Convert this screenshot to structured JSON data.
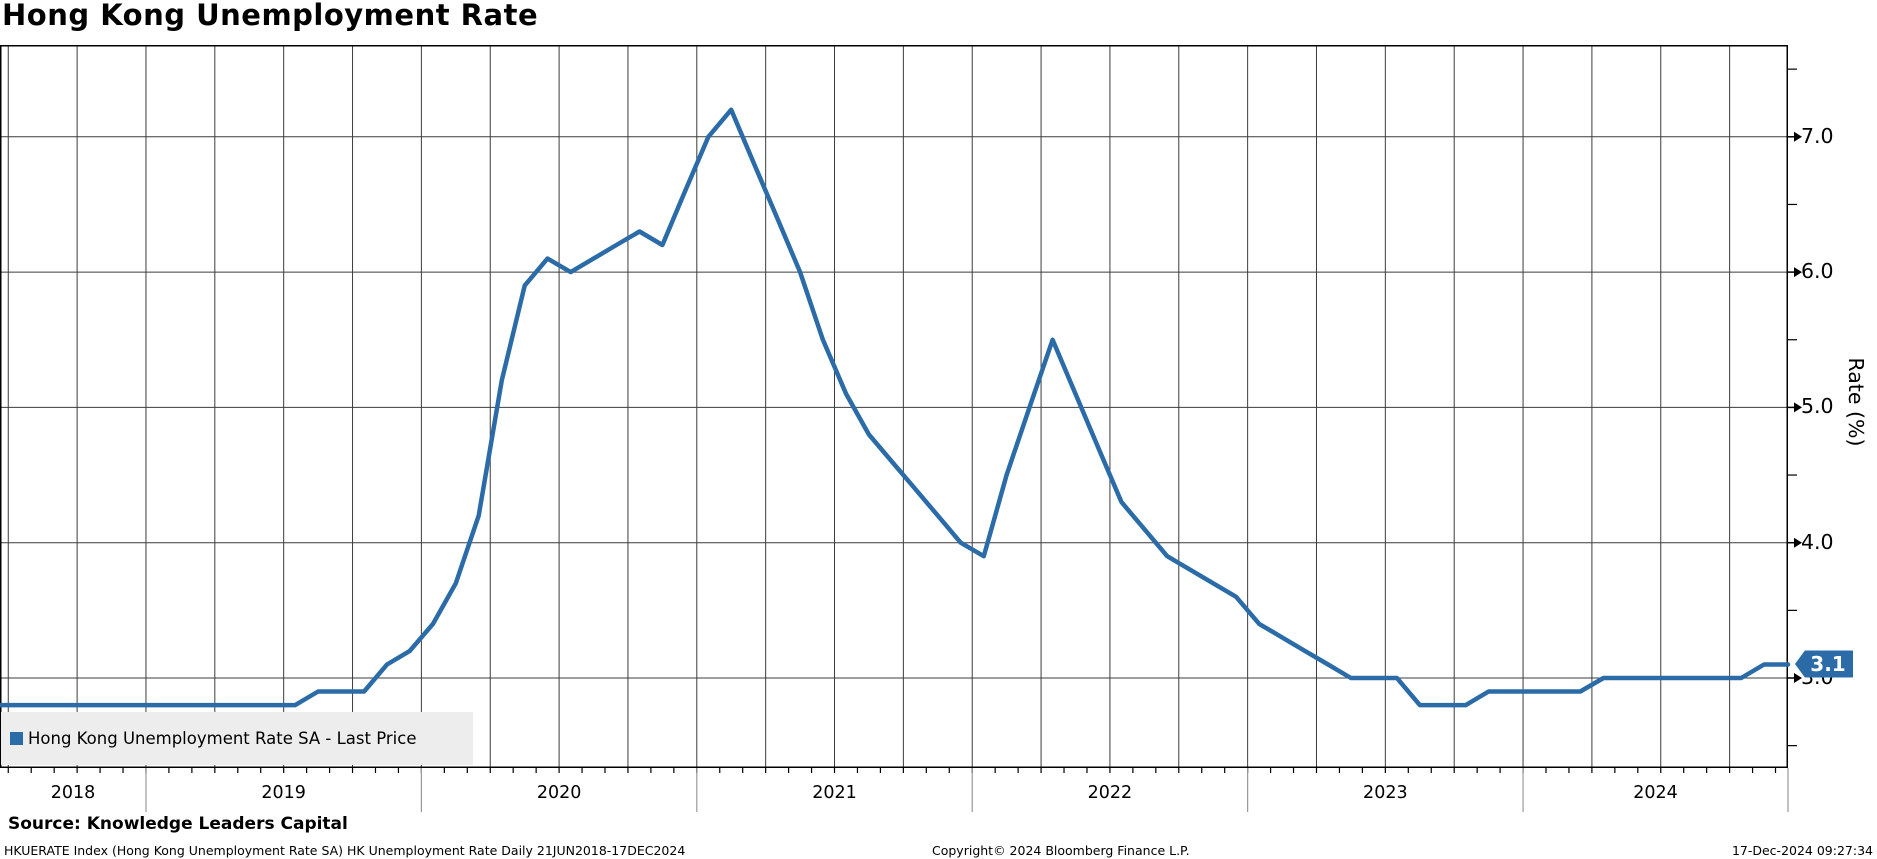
{
  "header": {
    "title": "Hong Kong Unemployment Rate"
  },
  "chart_data": {
    "type": "line",
    "title": "Hong Kong Unemployment Rate",
    "x_axis": {
      "years": [
        "2018",
        "2019",
        "2020",
        "2021",
        "2022",
        "2023",
        "2024"
      ],
      "start_label": "21JUN2018",
      "end_label": "17DEC2024",
      "minor_tick_interval": "monthly",
      "gridline_interval": "quarterly"
    },
    "y_axis": {
      "label": "Rate (%)",
      "side": "right",
      "major_ticks": [
        "7.0",
        "6.0",
        "5.0",
        "4.0",
        "3.0"
      ],
      "major_tick_values": [
        7.0,
        6.0,
        5.0,
        4.0,
        3.0
      ],
      "minor_tick_values": [
        7.5,
        6.5,
        5.5,
        4.5,
        3.5,
        2.5
      ],
      "range": [
        2.35,
        7.7
      ],
      "grid_values": [
        3,
        4,
        5,
        6,
        7
      ]
    },
    "series": [
      {
        "name": "Hong Kong Unemployment Rate SA - Last Price",
        "color": "#2B6CA8",
        "points": [
          [
            2018.47,
            2.8
          ],
          [
            2018.542,
            2.8
          ],
          [
            2018.625,
            2.8
          ],
          [
            2018.708,
            2.8
          ],
          [
            2018.792,
            2.8
          ],
          [
            2018.875,
            2.8
          ],
          [
            2018.958,
            2.8
          ],
          [
            2019.042,
            2.8
          ],
          [
            2019.125,
            2.8
          ],
          [
            2019.208,
            2.8
          ],
          [
            2019.292,
            2.8
          ],
          [
            2019.375,
            2.8
          ],
          [
            2019.458,
            2.8
          ],
          [
            2019.542,
            2.8
          ],
          [
            2019.625,
            2.9
          ],
          [
            2019.708,
            2.9
          ],
          [
            2019.792,
            2.9
          ],
          [
            2019.875,
            3.1
          ],
          [
            2019.958,
            3.2
          ],
          [
            2020.042,
            3.4
          ],
          [
            2020.125,
            3.7
          ],
          [
            2020.208,
            4.2
          ],
          [
            2020.292,
            5.2
          ],
          [
            2020.375,
            5.9
          ],
          [
            2020.458,
            6.1
          ],
          [
            2020.542,
            6.0
          ],
          [
            2020.625,
            6.1
          ],
          [
            2020.708,
            6.2
          ],
          [
            2020.792,
            6.3
          ],
          [
            2020.875,
            6.2
          ],
          [
            2020.958,
            6.6
          ],
          [
            2021.042,
            7.0
          ],
          [
            2021.125,
            7.2
          ],
          [
            2021.208,
            6.8
          ],
          [
            2021.292,
            6.4
          ],
          [
            2021.375,
            6.0
          ],
          [
            2021.458,
            5.5
          ],
          [
            2021.542,
            5.1
          ],
          [
            2021.625,
            4.8
          ],
          [
            2021.708,
            4.6
          ],
          [
            2021.792,
            4.4
          ],
          [
            2021.875,
            4.2
          ],
          [
            2021.958,
            4.0
          ],
          [
            2022.042,
            3.9
          ],
          [
            2022.125,
            4.5
          ],
          [
            2022.208,
            5.0
          ],
          [
            2022.292,
            5.5
          ],
          [
            2022.375,
            5.1
          ],
          [
            2022.458,
            4.7
          ],
          [
            2022.542,
            4.3
          ],
          [
            2022.625,
            4.1
          ],
          [
            2022.708,
            3.9
          ],
          [
            2022.792,
            3.8
          ],
          [
            2022.875,
            3.7
          ],
          [
            2022.958,
            3.6
          ],
          [
            2023.042,
            3.4
          ],
          [
            2023.125,
            3.3
          ],
          [
            2023.208,
            3.2
          ],
          [
            2023.292,
            3.1
          ],
          [
            2023.375,
            3.0
          ],
          [
            2023.458,
            3.0
          ],
          [
            2023.542,
            3.0
          ],
          [
            2023.625,
            2.8
          ],
          [
            2023.708,
            2.8
          ],
          [
            2023.792,
            2.8
          ],
          [
            2023.875,
            2.9
          ],
          [
            2023.958,
            2.9
          ],
          [
            2024.042,
            2.9
          ],
          [
            2024.125,
            2.9
          ],
          [
            2024.208,
            2.9
          ],
          [
            2024.292,
            3.0
          ],
          [
            2024.375,
            3.0
          ],
          [
            2024.458,
            3.0
          ],
          [
            2024.542,
            3.0
          ],
          [
            2024.625,
            3.0
          ],
          [
            2024.708,
            3.0
          ],
          [
            2024.792,
            3.0
          ],
          [
            2024.875,
            3.1
          ],
          [
            2024.962,
            3.1
          ]
        ]
      }
    ],
    "last_price_badge": "3.1"
  },
  "legend": {
    "items": [
      {
        "label": "Hong Kong Unemployment Rate SA - Last Price",
        "color": "#2B6CA8"
      }
    ]
  },
  "y_axis_title": "Rate (%)",
  "footer": {
    "source": "Source: Knowledge Leaders Capital",
    "description": "HKUERATE Index (Hong Kong Unemployment Rate SA) HK Unemployment Rate  Daily 21JUN2018-17DEC2024",
    "copyright": "Copyright© 2024 Bloomberg Finance L.P.",
    "timestamp": "17-Dec-2024 09:27:34"
  },
  "colors": {
    "line": "#2B6CA8",
    "badge_bg": "#2B6CA8",
    "badge_text": "#FFFFFF",
    "legend_bg": "#EDEDED",
    "grid": "#3C3C3C",
    "axis": "#000000",
    "year_tick": "#999999",
    "text": "#000000"
  }
}
